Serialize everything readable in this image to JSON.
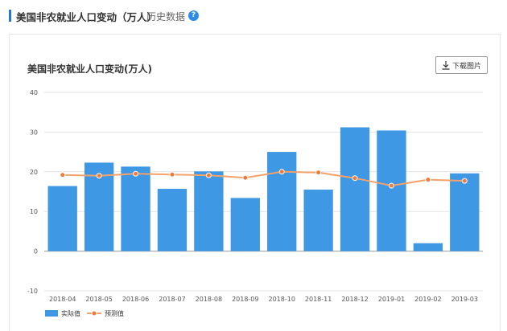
{
  "header": {
    "title": "美国非农就业人口变动（万人）",
    "history_link": "历史数据",
    "help_icon": "?"
  },
  "card": {
    "download_label": "下载图片",
    "download_icon": "download-icon"
  },
  "colors": {
    "accent": "#1f7ad6",
    "bar": "#3f98e4",
    "forecast_line": "#f5a26a",
    "forecast_marker": "#f07a3c"
  },
  "chart_data": {
    "type": "bar",
    "title": "美国非农就业人口变动(万人)",
    "xlabel": "",
    "ylabel": "",
    "ylim": [
      -10,
      40
    ],
    "yticks": [
      -10,
      0,
      10,
      20,
      30,
      40
    ],
    "grid": true,
    "legend_position": "bottom-left",
    "categories": [
      "2018-04",
      "2018-05",
      "2018-06",
      "2018-07",
      "2018-08",
      "2018-09",
      "2018-10",
      "2018-11",
      "2018-12",
      "2019-01",
      "2019-02",
      "2019-03"
    ],
    "series": [
      {
        "name": "实际值",
        "type": "bar",
        "values": [
          16.4,
          22.3,
          21.3,
          15.7,
          20.1,
          13.4,
          25.0,
          15.5,
          31.2,
          30.4,
          2.0,
          19.6
        ]
      },
      {
        "name": "预测值",
        "type": "line",
        "values": [
          19.2,
          19.0,
          19.5,
          19.3,
          19.1,
          18.5,
          20.0,
          19.8,
          18.4,
          16.5,
          18.0,
          17.7
        ]
      }
    ]
  }
}
